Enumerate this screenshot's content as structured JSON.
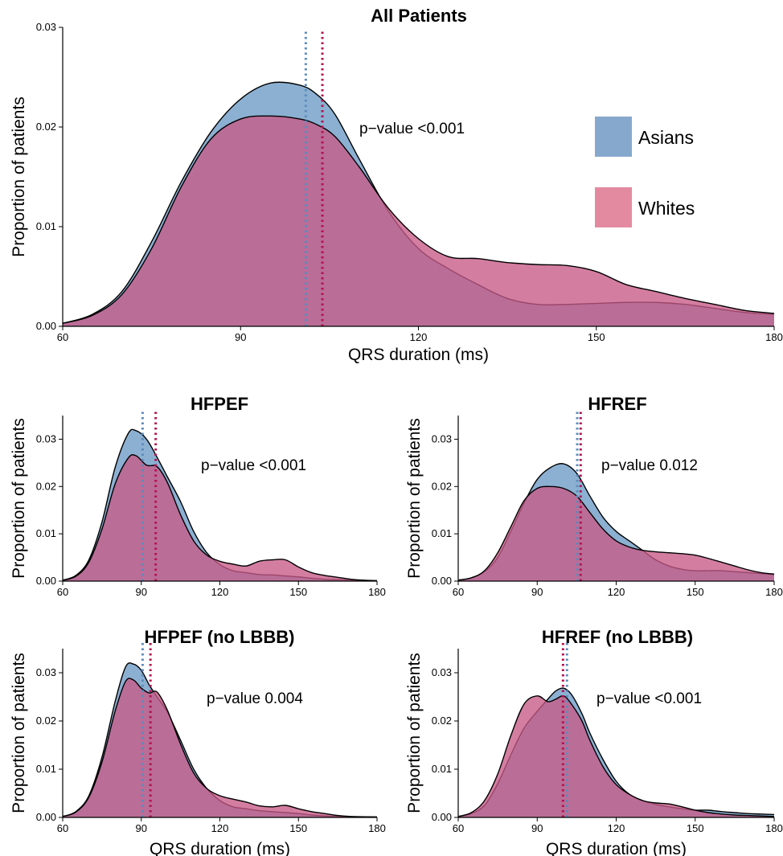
{
  "legend": {
    "items": [
      {
        "label": "Asians",
        "color": "#86a8cd"
      },
      {
        "label": "Whites",
        "color": "#e38aa1"
      }
    ],
    "placement": "right"
  },
  "style": {
    "asian_fill": "#8cb0d2",
    "white_fill": "#c75a86",
    "asian_line": "#5b8bbd",
    "white_line": "#b3124e",
    "grid": false
  },
  "chart_data": [
    {
      "type": "area",
      "title": "All Patients",
      "xlabel": "QRS duration (ms)",
      "ylabel": "Proportion of patients",
      "xlim": [
        60,
        180
      ],
      "ylim": [
        0,
        0.03
      ],
      "xticks": [
        "60",
        "90",
        "120",
        "150",
        "180"
      ],
      "yticks": [
        "0.00",
        "0.01",
        "0.02",
        "0.03"
      ],
      "annotation": "p−value <0.001",
      "medians": {
        "Asians": 101,
        "Whites": 103.8
      },
      "x": [
        60,
        65,
        70,
        75,
        80,
        85,
        90,
        95,
        100,
        103,
        106,
        110,
        115,
        120,
        125,
        130,
        135,
        140,
        145,
        150,
        155,
        160,
        165,
        170,
        175,
        180
      ],
      "series": [
        {
          "name": "Asians",
          "values": [
            0.0003,
            0.0012,
            0.0035,
            0.0085,
            0.0145,
            0.0195,
            0.0228,
            0.0244,
            0.0242,
            0.0232,
            0.0212,
            0.0168,
            0.0115,
            0.0078,
            0.0058,
            0.0042,
            0.0028,
            0.0022,
            0.0022,
            0.0023,
            0.0024,
            0.0024,
            0.0022,
            0.0018,
            0.0014,
            0.0012
          ]
        },
        {
          "name": "Whites",
          "values": [
            0.0003,
            0.0011,
            0.0032,
            0.0078,
            0.014,
            0.0188,
            0.0208,
            0.0211,
            0.0208,
            0.0202,
            0.019,
            0.016,
            0.0118,
            0.0088,
            0.007,
            0.0068,
            0.0064,
            0.0062,
            0.0061,
            0.0055,
            0.0042,
            0.0035,
            0.0028,
            0.0022,
            0.0016,
            0.0013
          ]
        }
      ]
    },
    {
      "type": "area",
      "title": "HFPEF",
      "xlabel": "",
      "ylabel": "Proportion of patients",
      "xlim": [
        60,
        180
      ],
      "ylim": [
        0,
        0.035
      ],
      "xticks": [
        "60",
        "90",
        "120",
        "150",
        "180"
      ],
      "yticks": [
        "0.00",
        "0.01",
        "0.02",
        "0.03"
      ],
      "annotation": "p−value <0.001",
      "medians": {
        "Asians": 90.5,
        "Whites": 95.5
      },
      "x": [
        60,
        65,
        70,
        75,
        80,
        85,
        88,
        92,
        96,
        100,
        105,
        110,
        115,
        120,
        125,
        130,
        135,
        140,
        145,
        150,
        155,
        160,
        165,
        170,
        175,
        180
      ],
      "series": [
        {
          "name": "Asians",
          "values": [
            0.0002,
            0.0012,
            0.0045,
            0.0125,
            0.024,
            0.0312,
            0.0318,
            0.03,
            0.0262,
            0.022,
            0.0168,
            0.0105,
            0.006,
            0.0035,
            0.0022,
            0.0018,
            0.0014,
            0.0013,
            0.0011,
            0.0009,
            0.0006,
            0.0004,
            0.0003,
            0.0002,
            0.0001,
            0.0001
          ]
        },
        {
          "name": "Whites",
          "values": [
            0.0002,
            0.001,
            0.004,
            0.011,
            0.0205,
            0.026,
            0.0265,
            0.0245,
            0.0242,
            0.0208,
            0.014,
            0.0085,
            0.0055,
            0.0042,
            0.0036,
            0.0032,
            0.0042,
            0.0045,
            0.0045,
            0.003,
            0.0018,
            0.0012,
            0.0008,
            0.0004,
            0.0002,
            0.0001
          ]
        }
      ]
    },
    {
      "type": "area",
      "title": "HFREF",
      "xlabel": "",
      "ylabel": "Proportion of patients",
      "xlim": [
        60,
        180
      ],
      "ylim": [
        0,
        0.035
      ],
      "xticks": [
        "60",
        "90",
        "120",
        "150",
        "180"
      ],
      "yticks": [
        "0.00",
        "0.01",
        "0.02",
        "0.03"
      ],
      "annotation": "p−value 0.012",
      "medians": {
        "Asians": 105.2,
        "Whites": 106.5
      },
      "x": [
        60,
        65,
        70,
        75,
        80,
        85,
        90,
        95,
        100,
        105,
        110,
        115,
        120,
        125,
        130,
        135,
        140,
        145,
        150,
        155,
        160,
        165,
        170,
        175,
        180
      ],
      "series": [
        {
          "name": "Asians",
          "values": [
            0.0002,
            0.0007,
            0.002,
            0.005,
            0.0105,
            0.0165,
            0.0215,
            0.024,
            0.0248,
            0.0228,
            0.018,
            0.0135,
            0.0105,
            0.0085,
            0.0065,
            0.0045,
            0.0032,
            0.0025,
            0.0022,
            0.0022,
            0.0022,
            0.002,
            0.0018,
            0.0016,
            0.0014
          ]
        },
        {
          "name": "Whites",
          "values": [
            0.0002,
            0.0007,
            0.0022,
            0.006,
            0.0115,
            0.017,
            0.0196,
            0.02,
            0.0196,
            0.018,
            0.0145,
            0.011,
            0.0085,
            0.0072,
            0.0065,
            0.0062,
            0.006,
            0.0058,
            0.0055,
            0.0048,
            0.004,
            0.0032,
            0.0024,
            0.0018,
            0.0015
          ]
        }
      ]
    },
    {
      "type": "area",
      "title": "HFPEF (no LBBB)",
      "xlabel": "QRS duration (ms)",
      "ylabel": "Proportion of patients",
      "xlim": [
        60,
        180
      ],
      "ylim": [
        0,
        0.035
      ],
      "xticks": [
        "60",
        "90",
        "120",
        "150",
        "180"
      ],
      "yticks": [
        "0.00",
        "0.01",
        "0.02",
        "0.03"
      ],
      "annotation": "p−value 0.004",
      "medians": {
        "Asians": 90.5,
        "Whites": 93.5
      },
      "x": [
        60,
        65,
        70,
        75,
        80,
        84,
        87,
        90,
        93,
        96,
        100,
        105,
        110,
        115,
        120,
        125,
        130,
        135,
        140,
        145,
        150,
        155,
        160,
        165,
        170,
        180
      ],
      "series": [
        {
          "name": "Asians",
          "values": [
            0.0002,
            0.0012,
            0.0045,
            0.0125,
            0.024,
            0.0312,
            0.0318,
            0.0305,
            0.0275,
            0.025,
            0.0218,
            0.016,
            0.01,
            0.006,
            0.0035,
            0.0022,
            0.0018,
            0.0014,
            0.0012,
            0.001,
            0.0008,
            0.0005,
            0.0003,
            0.0002,
            0.0001,
            0.0001
          ]
        },
        {
          "name": "Whites",
          "values": [
            0.0002,
            0.0011,
            0.0042,
            0.0115,
            0.022,
            0.0282,
            0.0285,
            0.0268,
            0.0258,
            0.026,
            0.0222,
            0.0152,
            0.0092,
            0.006,
            0.0045,
            0.0038,
            0.0032,
            0.0024,
            0.0022,
            0.0025,
            0.0018,
            0.0012,
            0.0008,
            0.0004,
            0.0002,
            0.0001
          ]
        }
      ]
    },
    {
      "type": "area",
      "title": "HFREF (no LBBB)",
      "xlabel": "QRS duration (ms)",
      "ylabel": "Proportion of patients",
      "xlim": [
        60,
        180
      ],
      "ylim": [
        0,
        0.035
      ],
      "xticks": [
        "60",
        "90",
        "120",
        "150",
        "180"
      ],
      "yticks": [
        "0.00",
        "0.01",
        "0.02",
        "0.03"
      ],
      "annotation": "p−value <0.001",
      "medians": {
        "Asians": 101.3,
        "Whites": 99.8
      },
      "x": [
        60,
        65,
        70,
        75,
        80,
        85,
        90,
        94,
        97,
        100,
        103,
        107,
        110,
        115,
        120,
        125,
        130,
        135,
        140,
        145,
        150,
        155,
        160,
        165,
        170,
        175,
        180
      ],
      "series": [
        {
          "name": "Asians",
          "values": [
            0.0002,
            0.0008,
            0.0025,
            0.007,
            0.013,
            0.0185,
            0.022,
            0.0245,
            0.0262,
            0.0268,
            0.0255,
            0.0215,
            0.0175,
            0.012,
            0.0075,
            0.0048,
            0.0035,
            0.0027,
            0.0022,
            0.0018,
            0.0015,
            0.0015,
            0.0012,
            0.001,
            0.0008,
            0.0007,
            0.0006
          ]
        },
        {
          "name": "Whites",
          "values": [
            0.0002,
            0.001,
            0.0035,
            0.009,
            0.017,
            0.0235,
            0.0252,
            0.024,
            0.0245,
            0.0252,
            0.0235,
            0.02,
            0.016,
            0.0105,
            0.0068,
            0.0048,
            0.0035,
            0.003,
            0.0028,
            0.0022,
            0.0015,
            0.001,
            0.0007,
            0.0005,
            0.0004,
            0.0003,
            0.0002
          ]
        }
      ]
    }
  ]
}
